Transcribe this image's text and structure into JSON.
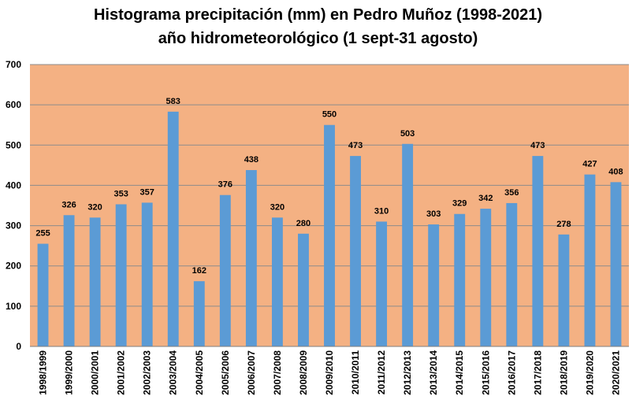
{
  "chart_data": {
    "type": "bar",
    "title": "Histograma precipitación (mm) en Pedro Muñoz (1998-2021)",
    "subtitle": "año hidrometeorológico (1 sept-31 agosto)",
    "xlabel": "",
    "ylabel": "",
    "ylim": [
      0,
      700
    ],
    "yticks": [
      "0",
      "100",
      "200",
      "300",
      "400",
      "500",
      "600",
      "700"
    ],
    "grid": true,
    "legend": "none",
    "colors": {
      "plot_bg": "#f4b183",
      "bar": "#5b9bd5",
      "grid": "#8c8c8c"
    },
    "categories": [
      "1998/1999",
      "1999/2000",
      "2000/2001",
      "2001/2002",
      "2002/2003",
      "2003/2004",
      "2004/2005",
      "2005/2006",
      "2006/2007",
      "2007/2008",
      "2008/2009",
      "2009/2010",
      "2010/2011",
      "2011/2012",
      "2012/2013",
      "2013/2014",
      "2014/2015",
      "2015/2016",
      "2016/2017",
      "2017/2018",
      "2018/2019",
      "2019/2020",
      "2020/2021"
    ],
    "values": [
      255,
      326,
      320,
      353,
      357,
      583,
      162,
      376,
      438,
      320,
      280,
      550,
      473,
      310,
      503,
      303,
      329,
      342,
      356,
      473,
      278,
      427,
      408
    ]
  }
}
